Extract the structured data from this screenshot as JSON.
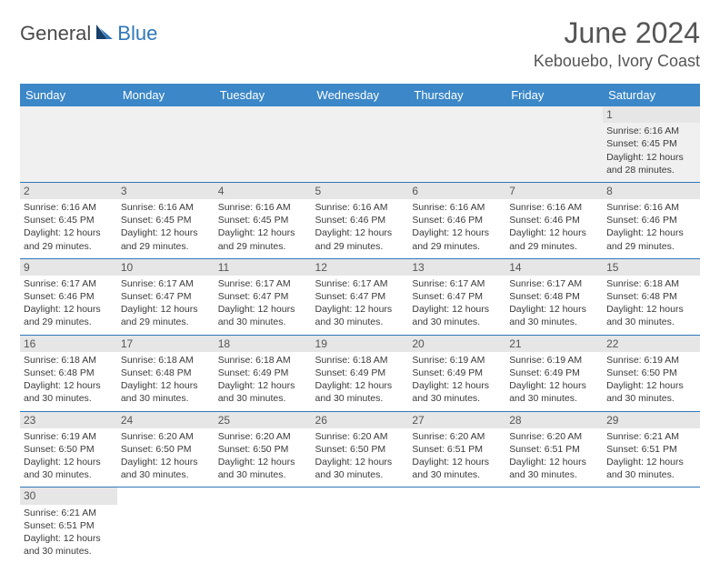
{
  "brand": {
    "part1": "General",
    "part2": "Blue"
  },
  "title": "June 2024",
  "location": "Kebouebo, Ivory Coast",
  "colors": {
    "header_bg": "#3b87c8",
    "header_text": "#ffffff",
    "accent": "#2f78b9",
    "daynum_bg": "#e6e6e6",
    "empty_bg": "#f0f0f0",
    "text": "#3a3a3a"
  },
  "weekdays": [
    "Sunday",
    "Monday",
    "Tuesday",
    "Wednesday",
    "Thursday",
    "Friday",
    "Saturday"
  ],
  "weeks": [
    [
      null,
      null,
      null,
      null,
      null,
      null,
      {
        "n": "1",
        "sr": "Sunrise: 6:16 AM",
        "ss": "Sunset: 6:45 PM",
        "d1": "Daylight: 12 hours",
        "d2": "and 28 minutes."
      }
    ],
    [
      {
        "n": "2",
        "sr": "Sunrise: 6:16 AM",
        "ss": "Sunset: 6:45 PM",
        "d1": "Daylight: 12 hours",
        "d2": "and 29 minutes."
      },
      {
        "n": "3",
        "sr": "Sunrise: 6:16 AM",
        "ss": "Sunset: 6:45 PM",
        "d1": "Daylight: 12 hours",
        "d2": "and 29 minutes."
      },
      {
        "n": "4",
        "sr": "Sunrise: 6:16 AM",
        "ss": "Sunset: 6:45 PM",
        "d1": "Daylight: 12 hours",
        "d2": "and 29 minutes."
      },
      {
        "n": "5",
        "sr": "Sunrise: 6:16 AM",
        "ss": "Sunset: 6:46 PM",
        "d1": "Daylight: 12 hours",
        "d2": "and 29 minutes."
      },
      {
        "n": "6",
        "sr": "Sunrise: 6:16 AM",
        "ss": "Sunset: 6:46 PM",
        "d1": "Daylight: 12 hours",
        "d2": "and 29 minutes."
      },
      {
        "n": "7",
        "sr": "Sunrise: 6:16 AM",
        "ss": "Sunset: 6:46 PM",
        "d1": "Daylight: 12 hours",
        "d2": "and 29 minutes."
      },
      {
        "n": "8",
        "sr": "Sunrise: 6:16 AM",
        "ss": "Sunset: 6:46 PM",
        "d1": "Daylight: 12 hours",
        "d2": "and 29 minutes."
      }
    ],
    [
      {
        "n": "9",
        "sr": "Sunrise: 6:17 AM",
        "ss": "Sunset: 6:46 PM",
        "d1": "Daylight: 12 hours",
        "d2": "and 29 minutes."
      },
      {
        "n": "10",
        "sr": "Sunrise: 6:17 AM",
        "ss": "Sunset: 6:47 PM",
        "d1": "Daylight: 12 hours",
        "d2": "and 29 minutes."
      },
      {
        "n": "11",
        "sr": "Sunrise: 6:17 AM",
        "ss": "Sunset: 6:47 PM",
        "d1": "Daylight: 12 hours",
        "d2": "and 30 minutes."
      },
      {
        "n": "12",
        "sr": "Sunrise: 6:17 AM",
        "ss": "Sunset: 6:47 PM",
        "d1": "Daylight: 12 hours",
        "d2": "and 30 minutes."
      },
      {
        "n": "13",
        "sr": "Sunrise: 6:17 AM",
        "ss": "Sunset: 6:47 PM",
        "d1": "Daylight: 12 hours",
        "d2": "and 30 minutes."
      },
      {
        "n": "14",
        "sr": "Sunrise: 6:17 AM",
        "ss": "Sunset: 6:48 PM",
        "d1": "Daylight: 12 hours",
        "d2": "and 30 minutes."
      },
      {
        "n": "15",
        "sr": "Sunrise: 6:18 AM",
        "ss": "Sunset: 6:48 PM",
        "d1": "Daylight: 12 hours",
        "d2": "and 30 minutes."
      }
    ],
    [
      {
        "n": "16",
        "sr": "Sunrise: 6:18 AM",
        "ss": "Sunset: 6:48 PM",
        "d1": "Daylight: 12 hours",
        "d2": "and 30 minutes."
      },
      {
        "n": "17",
        "sr": "Sunrise: 6:18 AM",
        "ss": "Sunset: 6:48 PM",
        "d1": "Daylight: 12 hours",
        "d2": "and 30 minutes."
      },
      {
        "n": "18",
        "sr": "Sunrise: 6:18 AM",
        "ss": "Sunset: 6:49 PM",
        "d1": "Daylight: 12 hours",
        "d2": "and 30 minutes."
      },
      {
        "n": "19",
        "sr": "Sunrise: 6:18 AM",
        "ss": "Sunset: 6:49 PM",
        "d1": "Daylight: 12 hours",
        "d2": "and 30 minutes."
      },
      {
        "n": "20",
        "sr": "Sunrise: 6:19 AM",
        "ss": "Sunset: 6:49 PM",
        "d1": "Daylight: 12 hours",
        "d2": "and 30 minutes."
      },
      {
        "n": "21",
        "sr": "Sunrise: 6:19 AM",
        "ss": "Sunset: 6:49 PM",
        "d1": "Daylight: 12 hours",
        "d2": "and 30 minutes."
      },
      {
        "n": "22",
        "sr": "Sunrise: 6:19 AM",
        "ss": "Sunset: 6:50 PM",
        "d1": "Daylight: 12 hours",
        "d2": "and 30 minutes."
      }
    ],
    [
      {
        "n": "23",
        "sr": "Sunrise: 6:19 AM",
        "ss": "Sunset: 6:50 PM",
        "d1": "Daylight: 12 hours",
        "d2": "and 30 minutes."
      },
      {
        "n": "24",
        "sr": "Sunrise: 6:20 AM",
        "ss": "Sunset: 6:50 PM",
        "d1": "Daylight: 12 hours",
        "d2": "and 30 minutes."
      },
      {
        "n": "25",
        "sr": "Sunrise: 6:20 AM",
        "ss": "Sunset: 6:50 PM",
        "d1": "Daylight: 12 hours",
        "d2": "and 30 minutes."
      },
      {
        "n": "26",
        "sr": "Sunrise: 6:20 AM",
        "ss": "Sunset: 6:50 PM",
        "d1": "Daylight: 12 hours",
        "d2": "and 30 minutes."
      },
      {
        "n": "27",
        "sr": "Sunrise: 6:20 AM",
        "ss": "Sunset: 6:51 PM",
        "d1": "Daylight: 12 hours",
        "d2": "and 30 minutes."
      },
      {
        "n": "28",
        "sr": "Sunrise: 6:20 AM",
        "ss": "Sunset: 6:51 PM",
        "d1": "Daylight: 12 hours",
        "d2": "and 30 minutes."
      },
      {
        "n": "29",
        "sr": "Sunrise: 6:21 AM",
        "ss": "Sunset: 6:51 PM",
        "d1": "Daylight: 12 hours",
        "d2": "and 30 minutes."
      }
    ],
    [
      {
        "n": "30",
        "sr": "Sunrise: 6:21 AM",
        "ss": "Sunset: 6:51 PM",
        "d1": "Daylight: 12 hours",
        "d2": "and 30 minutes."
      },
      null,
      null,
      null,
      null,
      null,
      null
    ]
  ]
}
